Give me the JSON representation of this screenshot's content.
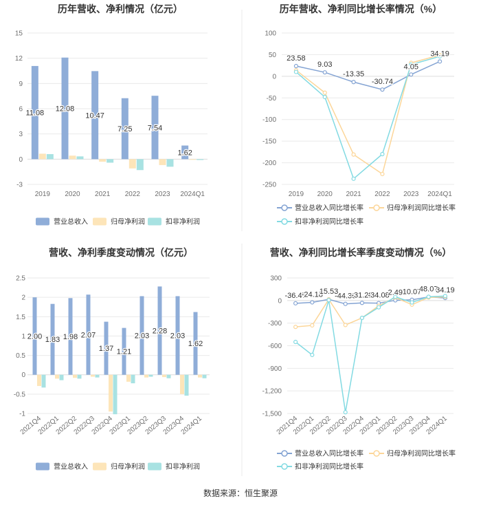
{
  "chart_data": [
    {
      "type": "bar",
      "title": "历年营收、净利情况（亿元）",
      "categories": [
        "2019",
        "2020",
        "2021",
        "2022",
        "2023",
        "2024Q1"
      ],
      "ylim": [
        -3,
        15
      ],
      "yticks": [
        "15",
        "12",
        "9",
        "6",
        "3",
        "0",
        "-3"
      ],
      "grid": true,
      "legend": "bottom",
      "series": [
        {
          "name": "营业总收入",
          "color": "#8fadd8",
          "values": [
            11.08,
            12.08,
            10.47,
            7.25,
            7.54,
            1.62
          ],
          "data_labels": [
            "11.08",
            "12.08",
            "10.47",
            "7.25",
            "7.54",
            "1.62"
          ]
        },
        {
          "name": "归母净利润",
          "color": "#fde5b9",
          "values": [
            0.65,
            0.42,
            -0.3,
            -1.1,
            -0.7,
            -0.08
          ]
        },
        {
          "name": "扣非净利润",
          "color": "#a8e2e2",
          "values": [
            0.6,
            0.33,
            -0.42,
            -1.3,
            -0.9,
            -0.1
          ]
        }
      ]
    },
    {
      "type": "line",
      "title": "历年营收、净利同比增长率情况（%）",
      "categories": [
        "2019",
        "2020",
        "2021",
        "2022",
        "2023",
        "2024Q1"
      ],
      "ylim": [
        -250,
        100
      ],
      "yticks": [
        "100",
        "50",
        "0",
        "-50",
        "-100",
        "-150",
        "-200",
        "-250"
      ],
      "grid": true,
      "legend": "bottom",
      "series": [
        {
          "name": "营业总收入同比增长率",
          "color": "#83a3d3",
          "values": [
            23.58,
            9.03,
            -13.35,
            -30.74,
            4.05,
            34.19
          ],
          "data_labels": [
            "23.58",
            "9.03",
            "-13.35",
            "-30.74",
            "4.05",
            "34.19"
          ]
        },
        {
          "name": "归母净利润同比增长率",
          "color": "#fcd699",
          "values": [
            14,
            -38,
            -181,
            -226,
            31,
            49
          ]
        },
        {
          "name": "扣非净利润同比增长率",
          "color": "#82dae2",
          "values": [
            10,
            -48,
            -237,
            -180,
            27,
            46
          ]
        }
      ]
    },
    {
      "type": "bar",
      "title": "营收、净利季度变动情况（亿元）",
      "categories": [
        "2021Q4",
        "2022Q1",
        "2022Q2",
        "2022Q3",
        "2022Q4",
        "2023Q1",
        "2023Q2",
        "2023Q3",
        "2023Q4",
        "2024Q1"
      ],
      "ylim": [
        -1,
        2.5
      ],
      "yticks": [
        "2.5",
        "2",
        "1.5",
        "1",
        "0.5",
        "0",
        "-0.5",
        "-1"
      ],
      "grid": true,
      "legend": "bottom",
      "series": [
        {
          "name": "营业总收入",
          "color": "#8fadd8",
          "values": [
            2.0,
            1.83,
            1.98,
            2.07,
            1.37,
            1.21,
            2.03,
            2.28,
            2.03,
            1.62
          ],
          "data_labels": [
            "2.00",
            "1.83",
            "1.98",
            "2.07",
            "1.37",
            "1.21",
            "2.03",
            "2.28",
            "2.03",
            "1.62"
          ]
        },
        {
          "name": "归母净利润",
          "color": "#fde5b9",
          "values": [
            -0.29,
            -0.1,
            -0.08,
            -0.05,
            -0.95,
            -0.18,
            -0.07,
            -0.06,
            -0.5,
            -0.07
          ]
        },
        {
          "name": "扣非净利润",
          "color": "#a8e2e2",
          "values": [
            -0.33,
            -0.14,
            -0.1,
            -0.07,
            -1.02,
            -0.22,
            -0.05,
            -0.09,
            -0.54,
            -0.09
          ]
        }
      ]
    },
    {
      "type": "line",
      "title": "营收、净利同比增长率季度变动情况（%）",
      "categories": [
        "2021Q4",
        "2022Q1",
        "2022Q2",
        "2022Q3",
        "2022Q4",
        "2023Q1",
        "2023Q2",
        "2023Q3",
        "2023Q4",
        "2024Q1"
      ],
      "ylim": [
        -1500,
        300
      ],
      "yticks": [
        "300",
        "0",
        "-300",
        "-600",
        "-900",
        "-1,200",
        "-1,500"
      ],
      "grid": true,
      "legend": "bottom",
      "series": [
        {
          "name": "营业总收入同比增长率",
          "color": "#83a3d3",
          "values": [
            -36.47,
            -24.18,
            15.53,
            -44.36,
            -31.28,
            -34.08,
            2.49,
            10.07,
            48.07,
            34.19
          ],
          "data_labels": [
            "-36.47",
            "-24.18",
            "15.53",
            "-44.36",
            "-31.28",
            "-34.08",
            "2.49",
            "10.07",
            "48.07",
            "34.19"
          ]
        },
        {
          "name": "归母净利润同比增长率",
          "color": "#fcd699",
          "values": [
            -350,
            -330,
            15,
            -325,
            -230,
            -70,
            40,
            -55,
            40,
            50
          ]
        },
        {
          "name": "扣非净利润同比增长率",
          "color": "#82dae2",
          "values": [
            -550,
            -722,
            5,
            -1483,
            -230,
            -90,
            50,
            -25,
            50,
            60
          ]
        }
      ]
    }
  ],
  "footer": {
    "source": "数据来源：恒生聚源"
  }
}
